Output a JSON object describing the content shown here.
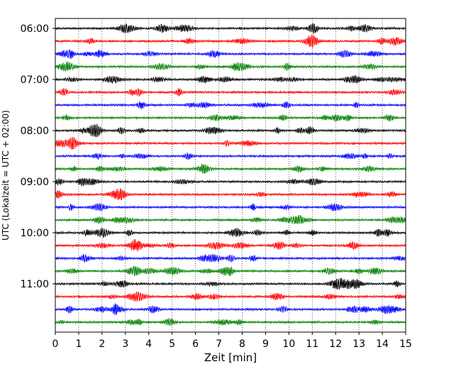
{
  "chart_data": {
    "type": "line",
    "xlabel": "Zeit  [min]",
    "ylabel": "UTC (Lokalzeit = UTC + 02:00)",
    "xlim": [
      0,
      15
    ],
    "x_ticks": [
      "0",
      "1",
      "2",
      "3",
      "4",
      "5",
      "6",
      "7",
      "8",
      "9",
      "10",
      "11",
      "12",
      "13",
      "14",
      "15"
    ],
    "y_tick_labels": [
      "06:00",
      "07:00",
      "08:00",
      "09:00",
      "10:00",
      "11:00"
    ],
    "grid": "vertical dotted",
    "trace_colors": [
      "#000000",
      "#ff0000",
      "#0000ff",
      "#008000"
    ],
    "traces": [
      "06:00",
      "06:15",
      "06:30",
      "06:45",
      "07:00",
      "07:15",
      "07:30",
      "07:45",
      "08:00",
      "08:15",
      "08:30",
      "08:45",
      "09:00",
      "09:15",
      "09:30",
      "09:45",
      "10:00",
      "10:15",
      "10:30",
      "10:45",
      "11:00",
      "11:15",
      "11:30",
      "11:45"
    ]
  }
}
